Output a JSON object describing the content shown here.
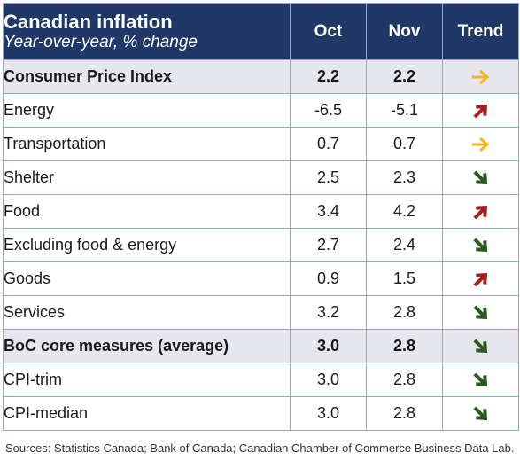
{
  "title": "Canadian inflation",
  "subtitle": "Year-over-year, % change",
  "columns": {
    "oct": "Oct",
    "nov": "Nov",
    "trend": "Trend"
  },
  "source": "Sources: Statistics Canada; Bank of Canada; Canadian Chamber of Commerce Business Data Lab.",
  "trend_colors": {
    "flat": "#f5b41c",
    "up": "#a61e22",
    "down": "#2a5a1e"
  },
  "chart_data": {
    "type": "table",
    "title": "Canadian inflation",
    "subtitle": "Year-over-year, % change",
    "columns": [
      "Oct",
      "Nov",
      "Trend"
    ],
    "rows": [
      {
        "label": "Consumer Price Index",
        "oct": "2.2",
        "nov": "2.2",
        "trend": "flat",
        "trend_icon": "arrow-right-icon",
        "style": "main"
      },
      {
        "label": "Energy",
        "oct": "-6.5",
        "nov": "-5.1",
        "trend": "up",
        "trend_icon": "arrow-up-right-icon",
        "style": "sub"
      },
      {
        "label": "Transportation",
        "oct": "0.7",
        "nov": "0.7",
        "trend": "flat",
        "trend_icon": "arrow-right-icon",
        "style": "sub"
      },
      {
        "label": "Shelter",
        "oct": "2.5",
        "nov": "2.3",
        "trend": "down",
        "trend_icon": "arrow-down-right-icon",
        "style": "sub"
      },
      {
        "label": "Food",
        "oct": "3.4",
        "nov": "4.2",
        "trend": "up",
        "trend_icon": "arrow-up-right-icon",
        "style": "sub"
      },
      {
        "label": "Excluding food & energy",
        "oct": "2.7",
        "nov": "2.4",
        "trend": "down",
        "trend_icon": "arrow-down-right-icon",
        "style": "sub"
      },
      {
        "label": "Goods",
        "oct": "0.9",
        "nov": "1.5",
        "trend": "up",
        "trend_icon": "arrow-up-right-icon",
        "style": "sub"
      },
      {
        "label": "Services",
        "oct": "3.2",
        "nov": "2.8",
        "trend": "down",
        "trend_icon": "arrow-down-right-icon",
        "style": "sub"
      },
      {
        "label": "BoC core measures (average)",
        "oct": "3.0",
        "nov": "2.8",
        "trend": "down",
        "trend_icon": "arrow-down-right-icon",
        "style": "main"
      },
      {
        "label": "CPI-trim",
        "oct": "3.0",
        "nov": "2.8",
        "trend": "down",
        "trend_icon": "arrow-down-right-icon",
        "style": "sub"
      },
      {
        "label": "CPI-median",
        "oct": "3.0",
        "nov": "2.8",
        "trend": "down",
        "trend_icon": "arrow-down-right-icon",
        "style": "sub"
      }
    ]
  }
}
